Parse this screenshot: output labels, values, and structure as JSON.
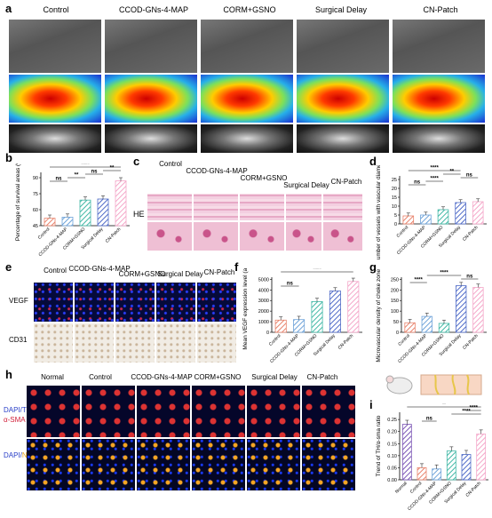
{
  "panels": {
    "a": {
      "label": "a",
      "groups": [
        "Control",
        "CCOD-GNs-4-MAP",
        "CORM+GSNO",
        "Surgical Delay",
        "CN-Patch"
      ]
    },
    "b": {
      "label": "b"
    },
    "c": {
      "label": "c",
      "groups": [
        "Control",
        "CCOD-GNs-4-MAP",
        "CORM+GSNO",
        "Surgical Delay",
        "CN-Patch"
      ],
      "row_label": "HE"
    },
    "d": {
      "label": "d"
    },
    "e": {
      "label": "e",
      "groups": [
        "Control",
        "CCOD-GNs-4-MAP",
        "CORM+GSNO",
        "Surgical Delay",
        "CN-Patch"
      ],
      "row_labels": [
        "VEGF",
        "CD31"
      ]
    },
    "f": {
      "label": "f"
    },
    "g": {
      "label": "g"
    },
    "h": {
      "label": "h",
      "groups": [
        "Normal",
        "Control",
        "CCOD-GNs-4-MAP",
        "CORM+GSNO",
        "Surgical Delay",
        "CN-Patch"
      ],
      "row1_label_a": "DAPI/TH/",
      "row1_label_b": "α-SMA",
      "row2_label_a": "DAPI/",
      "row2_label_b": "NF"
    },
    "i": {
      "label": "i"
    }
  },
  "colors": {
    "hatch": [
      "#e8836c",
      "#6fa3d9",
      "#42b8a6",
      "#4f6bc8",
      "#f4a7c9"
    ]
  },
  "chart_data": [
    {
      "id": "b",
      "type": "bar",
      "ylabel": "Percentage of survival areas (%)",
      "yticks": [
        "45",
        "60",
        "75",
        "90"
      ],
      "ylim": [
        45,
        95
      ],
      "categories": [
        "Control",
        "CCOD-GNs-4-MAP",
        "CORM+GSNO",
        "Surgical Delay",
        "CN-Patch"
      ],
      "values": [
        52,
        53,
        69,
        70,
        87
      ],
      "annotations": [
        "ns",
        "**",
        "ns",
        "**",
        "****"
      ]
    },
    {
      "id": "d",
      "type": "bar",
      "ylabel": "Number of vessels with vascular diameter>0.1mm",
      "yticks": [
        "0",
        "5",
        "10",
        "15",
        "20",
        "25"
      ],
      "ylim": [
        0,
        27
      ],
      "categories": [
        "Control",
        "CCOD-GNs-4-MAP",
        "CORM+GSNO",
        "Surgical Delay",
        "CN-Patch"
      ],
      "values": [
        4.5,
        5,
        8,
        12,
        12.5
      ],
      "annotations": [
        "ns",
        "****",
        "**",
        "ns",
        "****"
      ]
    },
    {
      "id": "f",
      "type": "bar",
      "ylabel": "Mean VEGF expression level (a.u.)",
      "yticks": [
        "0",
        "1000",
        "2000",
        "3000",
        "4000",
        "5000"
      ],
      "ylim": [
        0,
        5200
      ],
      "categories": [
        "Control",
        "CCOD-GNs-4-MAP",
        "CORM+GSNO",
        "Surgical Delay",
        "CN-Patch"
      ],
      "values": [
        1150,
        1200,
        2900,
        3900,
        4800
      ],
      "annotations": [
        "ns",
        "****"
      ]
    },
    {
      "id": "g",
      "type": "bar",
      "ylabel": "Microvascular density of choke zone (n/mm²)",
      "yticks": [
        "0",
        "50",
        "100",
        "150",
        "200",
        "250"
      ],
      "ylim": [
        0,
        260
      ],
      "categories": [
        "Control",
        "CCOD-GNs-4-MAP",
        "CORM+GSNO",
        "Surgical Delay",
        "CN-Patch"
      ],
      "values": [
        45,
        75,
        42,
        220,
        212
      ],
      "annotations": [
        "****",
        "****",
        "ns"
      ]
    },
    {
      "id": "i",
      "type": "bar",
      "ylabel": "Trend of TH/α-sma ratio",
      "yticks": [
        "0.00",
        "0.05",
        "0.10",
        "0.15",
        "0.20",
        "0.25"
      ],
      "ylim": [
        0,
        0.28
      ],
      "categories": [
        "Normal",
        "Control",
        "CCOD-GNs-4-MAP",
        "CORM+GSNO",
        "Surgical Delay",
        "CN-Patch"
      ],
      "values": [
        0.23,
        0.05,
        0.045,
        0.12,
        0.105,
        0.19
      ],
      "annotations": [
        "**",
        "ns",
        "****",
        "****"
      ]
    }
  ]
}
